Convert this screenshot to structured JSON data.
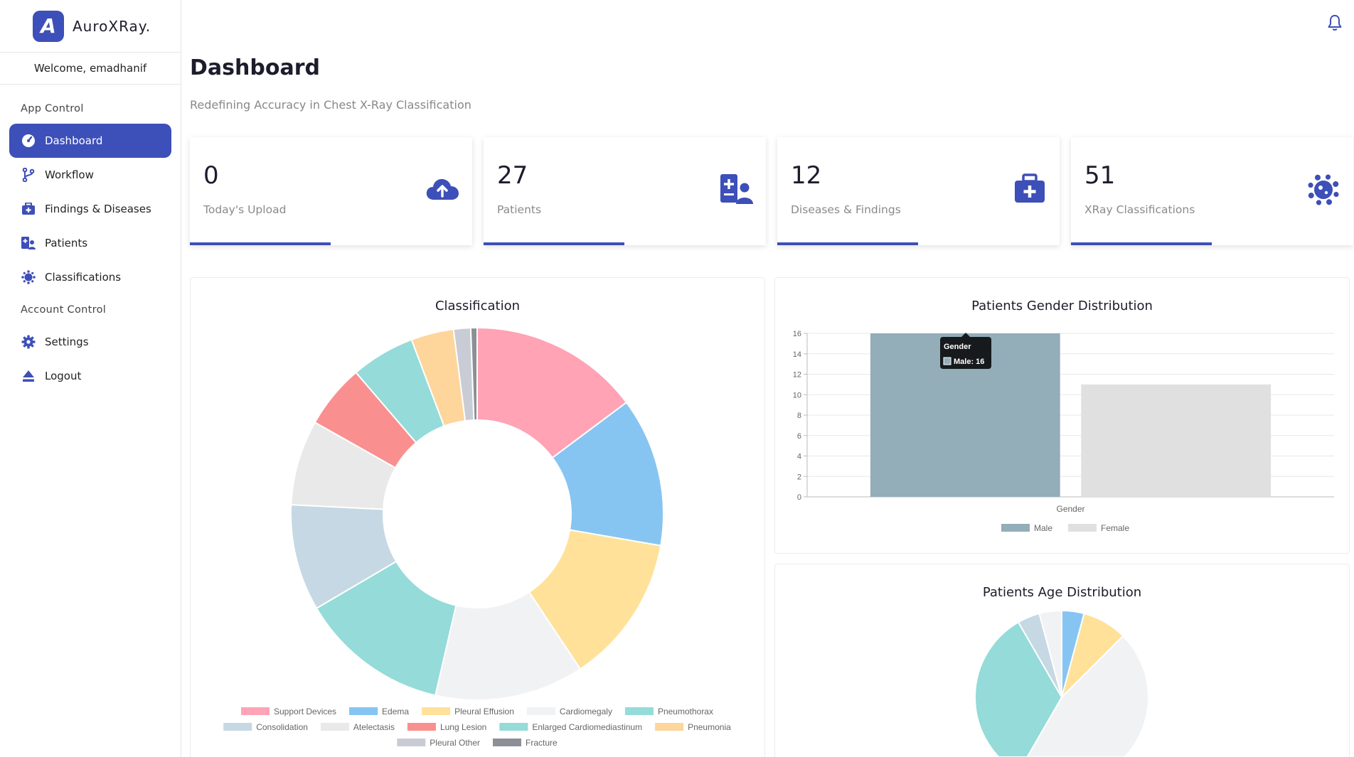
{
  "brand": {
    "logo_letter": "A",
    "name": "AuroXRay."
  },
  "welcome": "Welcome, emadhanif",
  "sidebar": {
    "sections": [
      {
        "title": "App Control"
      },
      {
        "title": "Account Control"
      }
    ],
    "items": [
      {
        "label": "Dashboard",
        "icon": "gauge-icon"
      },
      {
        "label": "Workflow",
        "icon": "branch-icon"
      },
      {
        "label": "Findings & Diseases",
        "icon": "medkit-icon"
      },
      {
        "label": "Patients",
        "icon": "patient-icon"
      },
      {
        "label": "Classifications",
        "icon": "virus-icon"
      },
      {
        "label": "Settings",
        "icon": "gear-icon"
      },
      {
        "label": "Logout",
        "icon": "eject-icon"
      }
    ]
  },
  "header": {
    "title": "Dashboard",
    "subtitle": "Redefining Accuracy in Chest X-Ray Classification"
  },
  "stats": [
    {
      "value": "0",
      "label": "Today's Upload",
      "icon": "cloud-upload-icon"
    },
    {
      "value": "27",
      "label": "Patients",
      "icon": "patients-icon"
    },
    {
      "value": "12",
      "label": "Diseases & Findings",
      "icon": "medkit-icon"
    },
    {
      "value": "51",
      "label": "XRay Classifications",
      "icon": "virus-icon"
    }
  ],
  "colors": {
    "accent": "#3d4fb8"
  },
  "chart_data": [
    {
      "type": "pie",
      "title": "Classification",
      "donut": true,
      "categories": [
        "Support Devices",
        "Edema",
        "Pleural Effusion",
        "Cardiomegaly",
        "Pneumothorax",
        "Consolidation",
        "Atelectasis",
        "Lung Lesion",
        "Enlarged Cardiomediastinum",
        "Pneumonia",
        "Pleural Other",
        "Fracture"
      ],
      "values": [
        8,
        7,
        7,
        7,
        7,
        5,
        4,
        3,
        3,
        2,
        0.8,
        0.3
      ],
      "colors": [
        "#ffa3b5",
        "#86c5f2",
        "#ffe19a",
        "#f1f2f4",
        "#94dbd9",
        "#c5d8e3",
        "#e9e9e9",
        "#fa8f8f",
        "#94dbd9",
        "#fed59b",
        "#c9ccd4",
        "#8c9096"
      ],
      "legend": "bottom"
    },
    {
      "type": "bar",
      "title": "Patients Gender Distribution",
      "categories": [
        "Gender"
      ],
      "xlabel": "Gender",
      "ylim": [
        0,
        16
      ],
      "yticks": [
        "0",
        "2",
        "4",
        "6",
        "8",
        "10",
        "12",
        "14",
        "16"
      ],
      "series": [
        {
          "name": "Male",
          "values": [
            16
          ],
          "color": "#93adb9"
        },
        {
          "name": "Female",
          "values": [
            11
          ],
          "color": "#e0e0e0"
        }
      ],
      "tooltip": {
        "title": "Gender",
        "text": "Male: 16"
      },
      "legend": "bottom"
    },
    {
      "type": "pie",
      "title": "Patients Age Distribution",
      "values": [
        1,
        2,
        11,
        8,
        1,
        1
      ],
      "colors": [
        "#86c5f2",
        "#ffe19a",
        "#f1f2f4",
        "#94dbd9",
        "#c5d8e3",
        "#f1f2f4"
      ]
    }
  ]
}
